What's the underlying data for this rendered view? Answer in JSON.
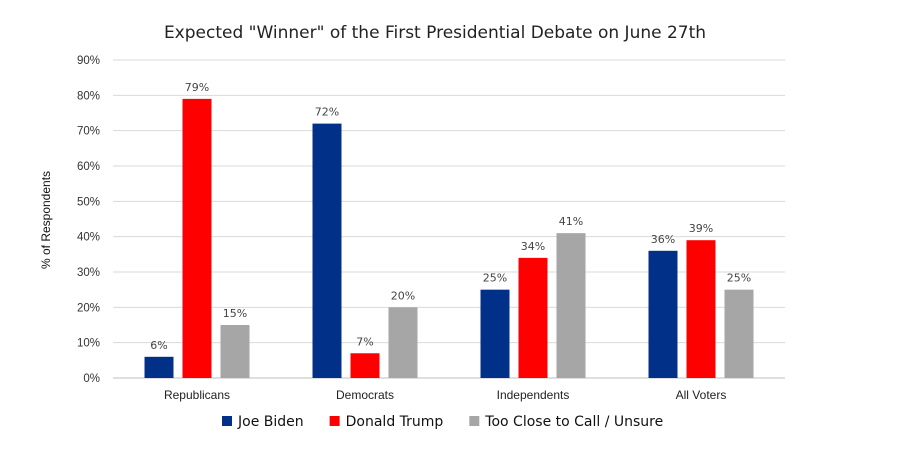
{
  "chart_data": {
    "type": "bar",
    "title": "Expected \"Winner\" of the First Presidential Debate on June 27th",
    "ylabel": "% of Respondents",
    "xlabel": "",
    "ylim": [
      0,
      90
    ],
    "yticks": [
      "0%",
      "10%",
      "20%",
      "30%",
      "40%",
      "50%",
      "60%",
      "70%",
      "80%",
      "90%"
    ],
    "categories": [
      "Republicans",
      "Democrats",
      "Independents",
      "All Voters"
    ],
    "series": [
      {
        "name": "Joe Biden",
        "color": "#003087",
        "values": [
          6,
          72,
          25,
          36
        ],
        "labels": [
          "6%",
          "72%",
          "25%",
          "36%"
        ]
      },
      {
        "name": "Donald Trump",
        "color": "#ff0000",
        "values": [
          79,
          7,
          34,
          39
        ],
        "labels": [
          "79%",
          "7%",
          "34%",
          "39%"
        ]
      },
      {
        "name": "Too Close to Call / Unsure",
        "color": "#a6a6a6",
        "values": [
          15,
          20,
          41,
          25
        ],
        "labels": [
          "15%",
          "20%",
          "41%",
          "25%"
        ]
      }
    ],
    "grid": true,
    "legend": "bottom"
  }
}
